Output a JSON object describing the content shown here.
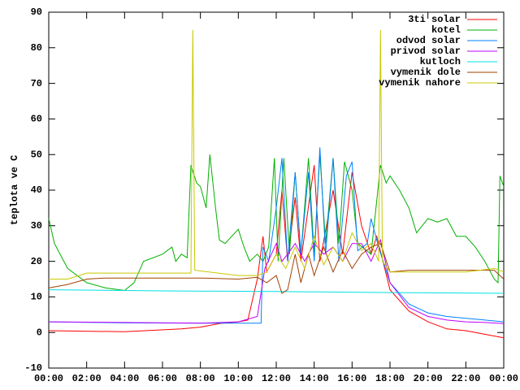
{
  "chart_data": {
    "type": "line",
    "y_label": "teplota ve C",
    "xlim": [
      0,
      24
    ],
    "xticks": [
      {
        "value": 0,
        "label": "00:00"
      },
      {
        "value": 2,
        "label": "02:00"
      },
      {
        "value": 4,
        "label": "04:00"
      },
      {
        "value": 6,
        "label": "06:00"
      },
      {
        "value": 8,
        "label": "08:00"
      },
      {
        "value": 10,
        "label": "10:00"
      },
      {
        "value": 12,
        "label": "12:00"
      },
      {
        "value": 14,
        "label": "14:00"
      },
      {
        "value": 16,
        "label": "16:00"
      },
      {
        "value": 18,
        "label": "18:00"
      },
      {
        "value": 20,
        "label": "20:00"
      },
      {
        "value": 22,
        "label": "22:00"
      },
      {
        "value": 24,
        "label": "00:00"
      }
    ],
    "ylim": [
      -10,
      90
    ],
    "yticks": [
      -10,
      0,
      10,
      20,
      30,
      40,
      50,
      60,
      70,
      80,
      90
    ],
    "legend": "top-right",
    "series": [
      {
        "name": "3ti solar",
        "color": "#ff0000",
        "x": [
          0,
          4,
          7,
          8,
          9,
          10,
          10.5,
          11,
          11.3,
          11.5,
          12,
          12.3,
          12.6,
          13,
          13.3,
          14,
          14.3,
          15,
          15.5,
          16,
          16.5,
          17,
          17.3,
          18,
          19,
          20,
          21,
          22,
          23,
          24
        ],
        "values": [
          0.5,
          0.2,
          1,
          1.5,
          2.5,
          3,
          3.5,
          15,
          27,
          17,
          22,
          40,
          20,
          38,
          20,
          47,
          20,
          40,
          22,
          45,
          30,
          22,
          27,
          12,
          6,
          3,
          1,
          0.5,
          -0.5,
          -1.5
        ]
      },
      {
        "name": "kotel",
        "color": "#00b000",
        "x": [
          0,
          0.3,
          1,
          2,
          3,
          4,
          4.5,
          5,
          6,
          6.5,
          6.7,
          7,
          7.3,
          7.5,
          7.8,
          8,
          8.3,
          8.5,
          8.8,
          9,
          9.3,
          10,
          10.3,
          10.6,
          11,
          11.3,
          11.6,
          11.9,
          12.1,
          12.4,
          12.7,
          13,
          13.3,
          13.7,
          14,
          14.3,
          14.6,
          15,
          15.3,
          15.6,
          16,
          16.3,
          17,
          17.5,
          17.8,
          18,
          18.5,
          19,
          19.4,
          20,
          20.5,
          21,
          21.5,
          22,
          22.5,
          23,
          23.5,
          23.7,
          23.8,
          24
        ],
        "values": [
          32,
          25,
          18,
          14,
          12.5,
          11.8,
          14,
          20,
          22,
          24,
          20,
          22,
          21,
          47,
          42,
          41,
          35,
          50,
          35,
          26,
          25,
          29,
          24,
          20,
          22,
          20,
          24,
          49,
          20,
          49,
          22,
          45,
          22,
          49,
          22,
          50,
          25,
          49,
          25,
          48,
          40,
          25,
          22,
          47,
          42,
          44,
          40,
          35,
          28,
          32,
          31,
          32,
          27,
          27,
          24,
          20,
          15,
          14,
          44,
          41
        ]
      },
      {
        "name": "odvod solar",
        "color": "#0080ff",
        "x": [
          0,
          4,
          8,
          10,
          11.2,
          11.3,
          11.6,
          12,
          12.3,
          12.6,
          13,
          13.3,
          13.7,
          14,
          14.3,
          14.6,
          15,
          15.3,
          15.7,
          16,
          16.3,
          16.8,
          17,
          17.4,
          18,
          19,
          20,
          21,
          22,
          23,
          24
        ],
        "values": [
          3,
          2.7,
          2.6,
          2.6,
          2.6,
          24,
          20,
          35,
          49,
          20,
          45,
          22,
          45,
          20,
          52,
          22,
          49,
          20,
          44,
          48,
          23,
          25,
          32,
          24,
          14,
          8,
          5.5,
          4.5,
          4,
          3.5,
          3
        ]
      },
      {
        "name": "privod solar",
        "color": "#c000ff",
        "x": [
          0,
          4,
          8,
          10,
          11,
          11.4,
          12,
          12.3,
          12.6,
          13,
          13.5,
          14,
          14.5,
          15,
          15.5,
          16,
          16.5,
          17,
          17.5,
          18,
          19,
          20,
          21,
          22,
          23,
          24
        ],
        "values": [
          3,
          2.8,
          2.6,
          3,
          4.5,
          18,
          25,
          20,
          22,
          25,
          20,
          25,
          22,
          24,
          20,
          25,
          25,
          20,
          26,
          14,
          7,
          4.5,
          3.5,
          3,
          2.8,
          2.5
        ]
      },
      {
        "name": "kutloch",
        "color": "#00e0e0",
        "x": [
          0,
          6,
          12,
          18,
          24
        ],
        "values": [
          12,
          11.7,
          11.5,
          11.2,
          11
        ]
      },
      {
        "name": "vymenik dole",
        "color": "#a04000",
        "x": [
          0,
          1,
          2,
          3,
          8,
          10,
          11,
          11.5,
          12,
          12.3,
          12.6,
          13,
          13.3,
          13.7,
          14,
          14.5,
          15,
          15.5,
          16,
          16.5,
          17,
          17.5,
          18,
          19,
          22,
          23.5,
          24
        ],
        "values": [
          12.5,
          13.5,
          15,
          15.3,
          15.3,
          15,
          15.5,
          14,
          16,
          11,
          12,
          22,
          14,
          22,
          16,
          24,
          17,
          23,
          18,
          22,
          24,
          25,
          17,
          17.5,
          17.5,
          17.5,
          15
        ]
      },
      {
        "name": "vymenik nahore",
        "color": "#c8c800",
        "x": [
          0,
          1,
          2,
          7.5,
          7.6,
          7.7,
          10,
          11,
          11.5,
          12,
          12.5,
          13,
          13.5,
          14,
          14.5,
          15,
          15.5,
          16,
          16.5,
          17,
          17.4,
          17.5,
          17.6,
          18,
          19,
          20,
          22,
          23.5,
          24
        ],
        "values": [
          15,
          15,
          16.7,
          16.7,
          85,
          17.5,
          16,
          16,
          17,
          22,
          18,
          24,
          18,
          27,
          19,
          24,
          20,
          28,
          23,
          25,
          20,
          85,
          20,
          17,
          17,
          17,
          17,
          18,
          17
        ]
      }
    ]
  }
}
